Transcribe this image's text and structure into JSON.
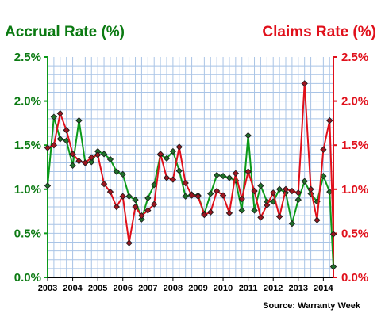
{
  "chart_data": {
    "type": "line",
    "left_title": "Accrual Rate (%)",
    "right_title": "Claims Rate (%)",
    "source": "Source: Warranty Week",
    "left_ticks": [
      "2.5%",
      "2.0%",
      "1.5%",
      "1.0%",
      "0.5%",
      "0.0%"
    ],
    "right_ticks": [
      "2.5%",
      "2.0%",
      "1.5%",
      "1.0%",
      "0.5%",
      "0.0%"
    ],
    "x_ticks": [
      "2003",
      "2004",
      "2005",
      "2006",
      "2007",
      "2008",
      "2009",
      "2010",
      "2011",
      "2012",
      "2013",
      "2014"
    ],
    "x_range": [
      2003,
      2014.4
    ],
    "ylim": [
      0,
      2.5
    ],
    "grid": true,
    "series": [
      {
        "name": "Accrual Rate (%)",
        "axis": "left",
        "color": "#0b9a1a",
        "points": [
          [
            2003.0,
            1.04
          ],
          [
            2003.25,
            1.82
          ],
          [
            2003.5,
            1.57
          ],
          [
            2003.75,
            1.55
          ],
          [
            2004.0,
            1.27
          ],
          [
            2004.25,
            1.78
          ],
          [
            2004.5,
            1.3
          ],
          [
            2004.75,
            1.31
          ],
          [
            2005.0,
            1.43
          ],
          [
            2005.25,
            1.4
          ],
          [
            2005.5,
            1.34
          ],
          [
            2005.75,
            1.2
          ],
          [
            2006.0,
            1.17
          ],
          [
            2006.25,
            0.92
          ],
          [
            2006.5,
            0.88
          ],
          [
            2006.75,
            0.66
          ],
          [
            2007.0,
            0.9
          ],
          [
            2007.25,
            1.05
          ],
          [
            2007.5,
            1.39
          ],
          [
            2007.75,
            1.35
          ],
          [
            2008.0,
            1.43
          ],
          [
            2008.25,
            1.21
          ],
          [
            2008.5,
            0.92
          ],
          [
            2008.75,
            0.94
          ],
          [
            2009.0,
            0.93
          ],
          [
            2009.25,
            0.72
          ],
          [
            2009.5,
            0.95
          ],
          [
            2009.75,
            1.16
          ],
          [
            2010.0,
            1.15
          ],
          [
            2010.25,
            1.13
          ],
          [
            2010.5,
            1.1
          ],
          [
            2010.75,
            0.76
          ],
          [
            2011.0,
            1.61
          ],
          [
            2011.25,
            0.76
          ],
          [
            2011.5,
            1.04
          ],
          [
            2011.75,
            0.86
          ],
          [
            2012.0,
            0.86
          ],
          [
            2012.25,
            1.0
          ],
          [
            2012.5,
            0.96
          ],
          [
            2012.75,
            0.61
          ],
          [
            2013.0,
            0.88
          ],
          [
            2013.25,
            1.09
          ],
          [
            2013.5,
            0.95
          ],
          [
            2013.75,
            0.86
          ],
          [
            2014.0,
            1.15
          ],
          [
            2014.25,
            0.97
          ],
          [
            2014.4,
            0.12
          ]
        ]
      },
      {
        "name": "Claims Rate (%)",
        "axis": "right",
        "color": "#e0101b",
        "points": [
          [
            2003.0,
            1.47
          ],
          [
            2003.25,
            1.5
          ],
          [
            2003.5,
            1.86
          ],
          [
            2003.75,
            1.67
          ],
          [
            2004.0,
            1.4
          ],
          [
            2004.25,
            1.32
          ],
          [
            2004.5,
            1.3
          ],
          [
            2004.75,
            1.36
          ],
          [
            2005.0,
            1.39
          ],
          [
            2005.25,
            1.06
          ],
          [
            2005.5,
            0.97
          ],
          [
            2005.75,
            0.8
          ],
          [
            2006.0,
            0.92
          ],
          [
            2006.25,
            0.39
          ],
          [
            2006.5,
            0.8
          ],
          [
            2006.75,
            0.7
          ],
          [
            2007.0,
            0.76
          ],
          [
            2007.25,
            0.83
          ],
          [
            2007.5,
            1.4
          ],
          [
            2007.75,
            1.13
          ],
          [
            2008.0,
            1.11
          ],
          [
            2008.25,
            1.48
          ],
          [
            2008.5,
            1.07
          ],
          [
            2008.75,
            0.93
          ],
          [
            2009.0,
            0.92
          ],
          [
            2009.25,
            0.71
          ],
          [
            2009.5,
            0.74
          ],
          [
            2009.75,
            0.98
          ],
          [
            2010.0,
            0.93
          ],
          [
            2010.25,
            0.73
          ],
          [
            2010.5,
            1.18
          ],
          [
            2010.75,
            0.89
          ],
          [
            2011.0,
            1.2
          ],
          [
            2011.25,
            0.98
          ],
          [
            2011.5,
            0.68
          ],
          [
            2011.75,
            0.82
          ],
          [
            2012.0,
            0.96
          ],
          [
            2012.25,
            0.69
          ],
          [
            2012.5,
            1.0
          ],
          [
            2012.75,
            0.98
          ],
          [
            2013.0,
            0.96
          ],
          [
            2013.25,
            2.2
          ],
          [
            2013.5,
            1.0
          ],
          [
            2013.75,
            0.65
          ],
          [
            2014.0,
            1.45
          ],
          [
            2014.25,
            1.78
          ],
          [
            2014.4,
            0.49
          ]
        ]
      }
    ]
  }
}
